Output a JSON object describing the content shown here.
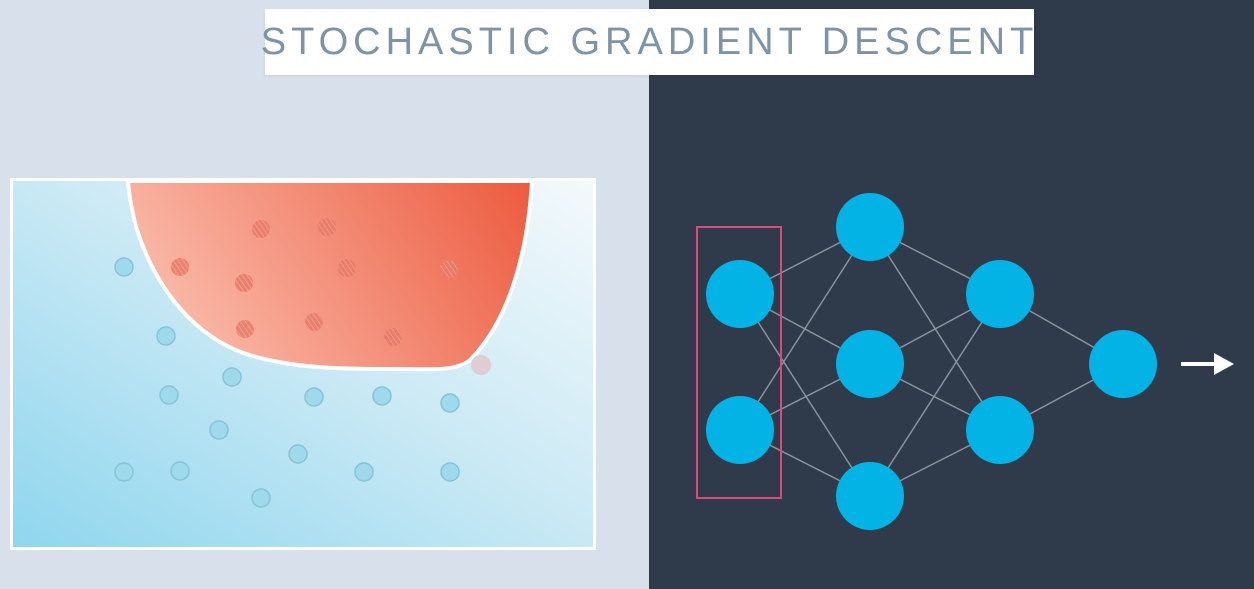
{
  "title": "STOCHASTIC GRADIENT DESCENT",
  "colors": {
    "left_background": "#d8e1eb",
    "right_background": "#2f3b4a",
    "title_text": "#7f93a6",
    "node": "#03b3e6",
    "edge": "#8c96a2",
    "highlight_box": "#d94b79",
    "red_region": "#ef6b55",
    "blue_region": "#a6dcef",
    "arrow": "#ffffff"
  },
  "scatter": {
    "blue_points": 17,
    "red_points": 12
  },
  "network": {
    "layers": [
      2,
      3,
      2,
      1
    ],
    "highlighted_layer": 0,
    "output_arrow_icon": "right-arrow-icon"
  }
}
